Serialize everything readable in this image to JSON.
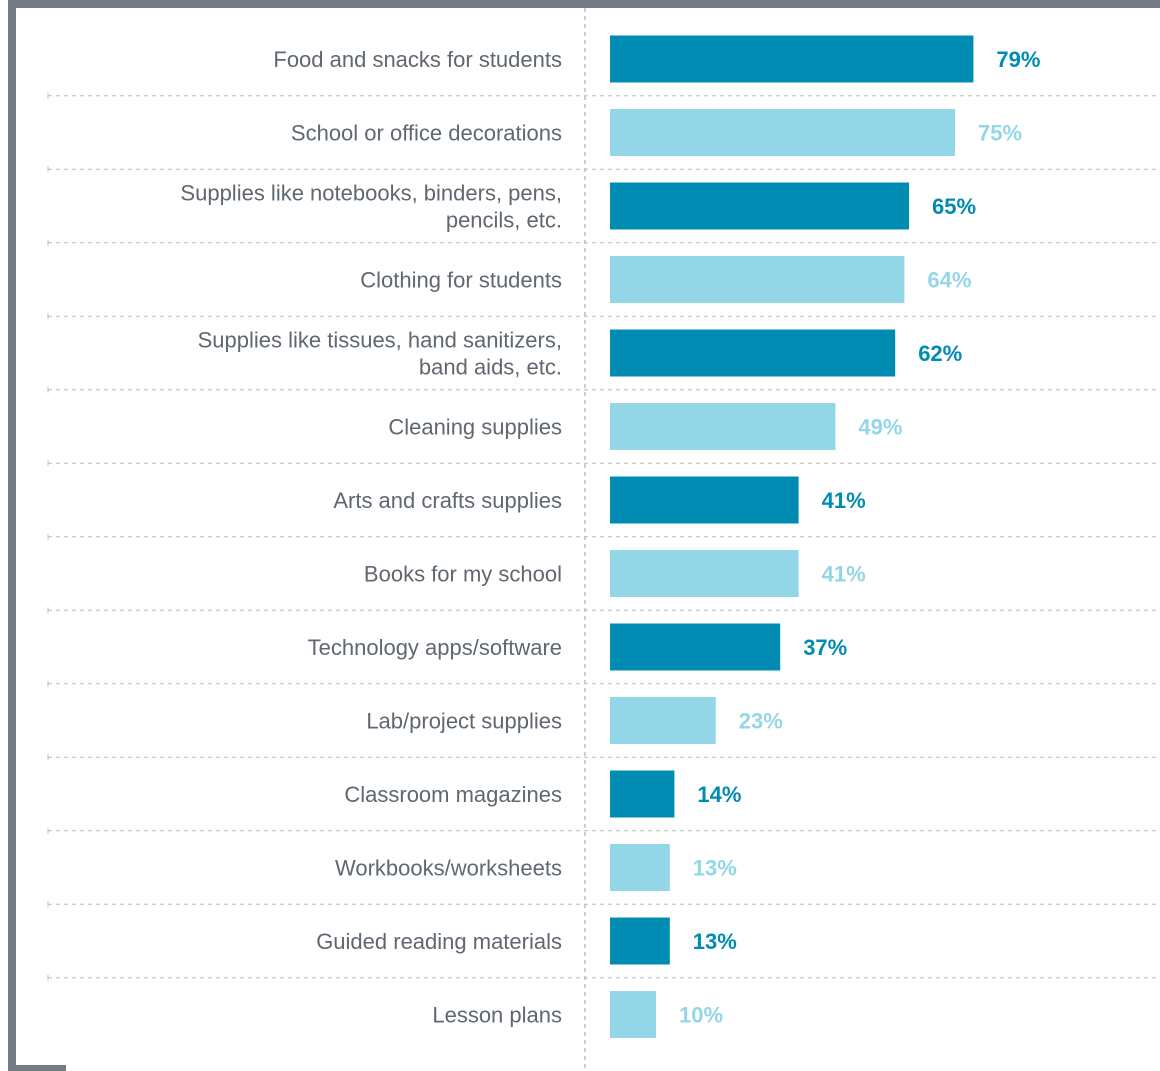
{
  "chart_data": {
    "type": "bar",
    "orientation": "horizontal",
    "categories": [
      [
        "Food and snacks for students"
      ],
      [
        "School or office decorations"
      ],
      [
        "Supplies like notebooks, binders, pens,",
        "pencils, etc."
      ],
      [
        "Clothing for students"
      ],
      [
        "Supplies like tissues, hand sanitizers,",
        "band aids, etc."
      ],
      [
        "Cleaning supplies"
      ],
      [
        "Arts and crafts supplies"
      ],
      [
        "Books for my school"
      ],
      [
        "Technology apps/software"
      ],
      [
        "Lab/project supplies"
      ],
      [
        "Classroom magazines"
      ],
      [
        "Workbooks/worksheets"
      ],
      [
        "Guided reading materials"
      ],
      [
        "Lesson plans"
      ]
    ],
    "values": [
      79,
      75,
      65,
      64,
      62,
      49,
      41,
      41,
      37,
      23,
      14,
      13,
      13,
      10
    ],
    "value_labels": [
      "79%",
      "75%",
      "65%",
      "64%",
      "62%",
      "49%",
      "41%",
      "41%",
      "37%",
      "23%",
      "14%",
      "13%",
      "13%",
      "10%"
    ],
    "unit": "%",
    "xlim": [
      0,
      100
    ],
    "colors": {
      "dark": "#008bb3",
      "light": "#93d6e7",
      "frame": "#747b84",
      "grid": "#b9bec3",
      "label": "#5f6770"
    },
    "bar_color_pattern": [
      "dark",
      "light"
    ],
    "grid": true
  }
}
